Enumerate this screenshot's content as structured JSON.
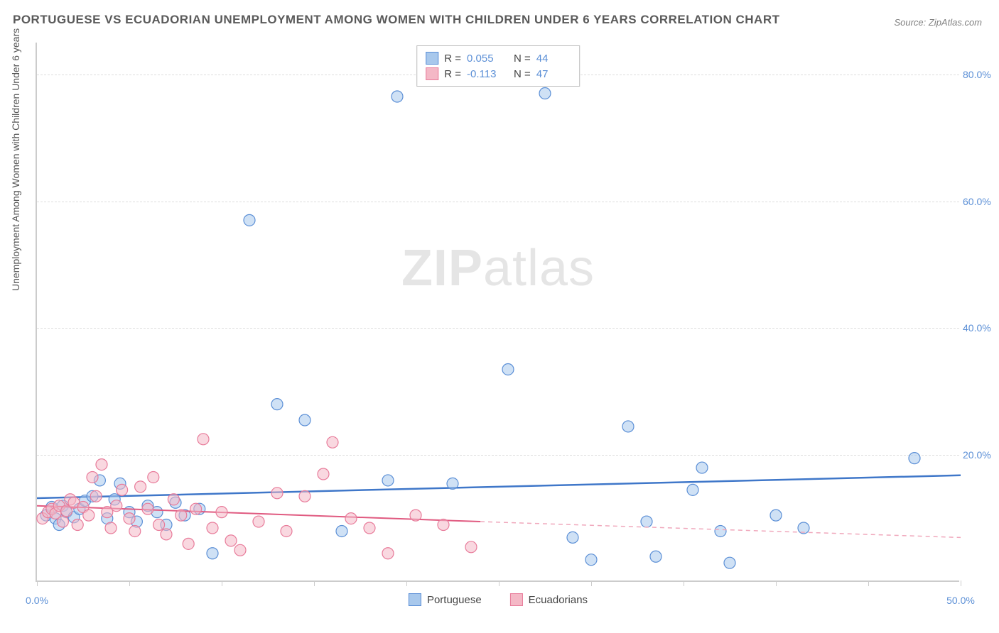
{
  "title": "PORTUGUESE VS ECUADORIAN UNEMPLOYMENT AMONG WOMEN WITH CHILDREN UNDER 6 YEARS CORRELATION CHART",
  "source_label": "Source: ZipAtlas.com",
  "ylabel": "Unemployment Among Women with Children Under 6 years",
  "watermark_bold": "ZIP",
  "watermark_rest": "atlas",
  "chart": {
    "type": "scatter",
    "xlim": [
      0,
      50
    ],
    "ylim": [
      0,
      85
    ],
    "xtick_vals": [
      0,
      5,
      10,
      15,
      20,
      25,
      30,
      35,
      40,
      45,
      50
    ],
    "xtick_labels_shown": {
      "0": "0.0%",
      "50": "50.0%"
    },
    "ytick_vals": [
      20,
      40,
      60,
      80
    ],
    "ytick_labels": [
      "20.0%",
      "40.0%",
      "60.0%",
      "80.0%"
    ],
    "grid_color": "#dddddd",
    "axis_color": "#cccccc",
    "tick_label_color": "#5b8fd6",
    "background_color": "#ffffff",
    "marker_radius": 8,
    "marker_opacity": 0.55,
    "marker_stroke_width": 1.2,
    "series": [
      {
        "name": "Portuguese",
        "color_fill": "#a8c8ec",
        "color_stroke": "#5b8fd6",
        "R": "0.055",
        "N": "44",
        "trend": {
          "x1": 0,
          "y1": 13.2,
          "x2": 50,
          "y2": 16.8,
          "stroke": "#3f77c9",
          "width": 2.5,
          "dash": "none"
        },
        "points": [
          [
            0.5,
            10.5
          ],
          [
            0.8,
            11.8
          ],
          [
            1.0,
            10.0
          ],
          [
            1.2,
            9.0
          ],
          [
            1.4,
            12.0
          ],
          [
            1.6,
            11.0
          ],
          [
            2.0,
            10.2
          ],
          [
            2.3,
            11.5
          ],
          [
            2.6,
            12.8
          ],
          [
            3.0,
            13.5
          ],
          [
            3.4,
            16.0
          ],
          [
            3.8,
            10.0
          ],
          [
            4.2,
            13.0
          ],
          [
            4.5,
            15.5
          ],
          [
            5.0,
            11.0
          ],
          [
            5.4,
            9.5
          ],
          [
            6.0,
            12.0
          ],
          [
            6.5,
            11.0
          ],
          [
            7.0,
            9.0
          ],
          [
            7.5,
            12.5
          ],
          [
            8.0,
            10.5
          ],
          [
            8.8,
            11.5
          ],
          [
            9.5,
            4.5
          ],
          [
            11.5,
            57.0
          ],
          [
            13.0,
            28.0
          ],
          [
            14.5,
            25.5
          ],
          [
            16.5,
            8.0
          ],
          [
            19.0,
            16.0
          ],
          [
            19.5,
            76.5
          ],
          [
            22.5,
            15.5
          ],
          [
            25.5,
            33.5
          ],
          [
            27.5,
            77.0
          ],
          [
            29.0,
            7.0
          ],
          [
            30.0,
            3.5
          ],
          [
            32.0,
            24.5
          ],
          [
            33.0,
            9.5
          ],
          [
            33.5,
            4.0
          ],
          [
            35.5,
            14.5
          ],
          [
            36.0,
            18.0
          ],
          [
            37.0,
            8.0
          ],
          [
            37.5,
            3.0
          ],
          [
            40.0,
            10.5
          ],
          [
            41.5,
            8.5
          ],
          [
            47.5,
            19.5
          ]
        ]
      },
      {
        "name": "Ecuadorians",
        "color_fill": "#f4b8c6",
        "color_stroke": "#e87b9a",
        "R": "-0.113",
        "N": "47",
        "trend": {
          "x1": 0,
          "y1": 12.0,
          "x2": 24,
          "y2": 9.5,
          "stroke": "#e05a80",
          "width": 2,
          "dash": "none"
        },
        "trend_extended": {
          "x1": 24,
          "y1": 9.5,
          "x2": 50,
          "y2": 7.0,
          "stroke": "#f0a8bc",
          "width": 1.5,
          "dash": "6,5"
        },
        "points": [
          [
            0.3,
            10.0
          ],
          [
            0.6,
            11.0
          ],
          [
            0.8,
            11.5
          ],
          [
            1.0,
            10.8
          ],
          [
            1.2,
            12.0
          ],
          [
            1.4,
            9.5
          ],
          [
            1.6,
            11.2
          ],
          [
            1.8,
            13.0
          ],
          [
            2.0,
            12.5
          ],
          [
            2.2,
            9.0
          ],
          [
            2.5,
            11.8
          ],
          [
            2.8,
            10.5
          ],
          [
            3.0,
            16.5
          ],
          [
            3.2,
            13.5
          ],
          [
            3.5,
            18.5
          ],
          [
            3.8,
            11.0
          ],
          [
            4.0,
            8.5
          ],
          [
            4.3,
            12.0
          ],
          [
            4.6,
            14.5
          ],
          [
            5.0,
            10.0
          ],
          [
            5.3,
            8.0
          ],
          [
            5.6,
            15.0
          ],
          [
            6.0,
            11.5
          ],
          [
            6.3,
            16.5
          ],
          [
            6.6,
            9.0
          ],
          [
            7.0,
            7.5
          ],
          [
            7.4,
            13.0
          ],
          [
            7.8,
            10.5
          ],
          [
            8.2,
            6.0
          ],
          [
            8.6,
            11.5
          ],
          [
            9.0,
            22.5
          ],
          [
            9.5,
            8.5
          ],
          [
            10.0,
            11.0
          ],
          [
            10.5,
            6.5
          ],
          [
            11.0,
            5.0
          ],
          [
            12.0,
            9.5
          ],
          [
            13.0,
            14.0
          ],
          [
            13.5,
            8.0
          ],
          [
            14.5,
            13.5
          ],
          [
            15.5,
            17.0
          ],
          [
            16.0,
            22.0
          ],
          [
            17.0,
            10.0
          ],
          [
            18.0,
            8.5
          ],
          [
            19.0,
            4.5
          ],
          [
            20.5,
            10.5
          ],
          [
            22.0,
            9.0
          ],
          [
            23.5,
            5.5
          ]
        ]
      }
    ]
  },
  "stats_box": {
    "rows": [
      {
        "swatch_fill": "#a8c8ec",
        "swatch_stroke": "#5b8fd6",
        "r_label": "R =",
        "r_val": "0.055",
        "n_label": "N =",
        "n_val": "44"
      },
      {
        "swatch_fill": "#f4b8c6",
        "swatch_stroke": "#e87b9a",
        "r_label": "R =",
        "r_val": "-0.113",
        "n_label": "N =",
        "n_val": "47"
      }
    ]
  },
  "bottom_legend": [
    {
      "swatch_fill": "#a8c8ec",
      "swatch_stroke": "#5b8fd6",
      "label": "Portuguese"
    },
    {
      "swatch_fill": "#f4b8c6",
      "swatch_stroke": "#e87b9a",
      "label": "Ecuadorians"
    }
  ]
}
